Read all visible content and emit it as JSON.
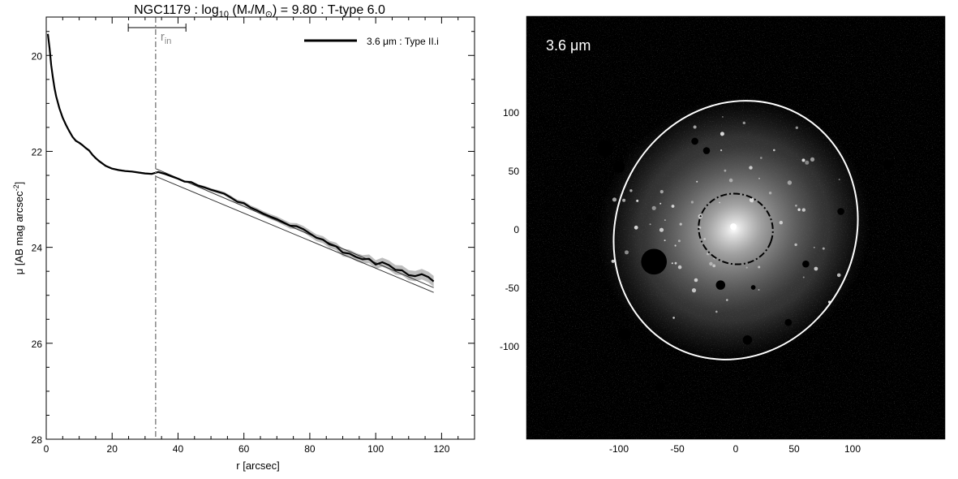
{
  "chart_data": [
    {
      "type": "line",
      "title": "NGC1179 : log",
      "title_sub": "10",
      "title_mid": " (M",
      "title_star": "*",
      "title_slash": "/M",
      "title_sun": "⊙",
      "title_end": ") = 9.80 : T-type 6.0",
      "xlabel": "r [arcsec]",
      "ylabel": "μ [AB mag arcsec",
      "ylabel_sup": "-2",
      "ylabel_end": "]",
      "xlim": [
        0,
        130
      ],
      "ylim": [
        28,
        19.2
      ],
      "y_inverted": true,
      "xticks": [
        "0",
        "20",
        "40",
        "60",
        "80",
        "100",
        "120"
      ],
      "yticks": [
        "20",
        "22",
        "24",
        "26",
        "28"
      ],
      "legend_placement": "top-right",
      "legend": [
        {
          "name": "3.6 μm : Type II.i",
          "color": "#000000"
        }
      ],
      "r_in": {
        "label": "r",
        "label_sub": "in",
        "x": 33.2,
        "err_low": 24.9,
        "err_high": 42.4,
        "color": "#888888"
      },
      "series": [
        {
          "name": "3.6 μm : Type II.i",
          "color": "#000000",
          "x": [
            0.5,
            1,
            1.5,
            2,
            2.5,
            3,
            4,
            5,
            6,
            7,
            8,
            9,
            10,
            11,
            12,
            13,
            14,
            15,
            16,
            17,
            18,
            19,
            20,
            22,
            24,
            26,
            28,
            30,
            32,
            33,
            34,
            36,
            38,
            40,
            42,
            44,
            46,
            48,
            50,
            52,
            54,
            56,
            58,
            60,
            62,
            64,
            66,
            68,
            70,
            72,
            74,
            76,
            78,
            80,
            82,
            84,
            86,
            88,
            90,
            92,
            94,
            96,
            98,
            100,
            102,
            104,
            106,
            108,
            110,
            112,
            114,
            116,
            117.6
          ],
          "y": [
            19.55,
            19.85,
            20.2,
            20.45,
            20.68,
            20.85,
            21.1,
            21.3,
            21.45,
            21.58,
            21.7,
            21.78,
            21.82,
            21.87,
            21.93,
            21.98,
            22.07,
            22.14,
            22.2,
            22.25,
            22.3,
            22.33,
            22.36,
            22.39,
            22.41,
            22.42,
            22.44,
            22.46,
            22.47,
            22.45,
            22.43,
            22.47,
            22.52,
            22.57,
            22.63,
            22.64,
            22.71,
            22.75,
            22.8,
            22.84,
            22.88,
            22.96,
            23.05,
            23.08,
            23.17,
            23.23,
            23.3,
            23.36,
            23.41,
            23.48,
            23.55,
            23.56,
            23.62,
            23.71,
            23.8,
            23.84,
            23.94,
            23.98,
            24.11,
            24.13,
            24.2,
            24.25,
            24.24,
            24.36,
            24.31,
            24.37,
            24.47,
            24.48,
            24.58,
            24.6,
            24.56,
            24.62,
            24.71
          ]
        }
      ],
      "fits": [
        {
          "x": [
            33.2,
            117.6
          ],
          "y": [
            22.52,
            24.94
          ],
          "color": "#333333"
        },
        {
          "x": [
            33.2,
            117.6
          ],
          "y": [
            22.36,
            24.84
          ],
          "color": "#333333"
        }
      ]
    },
    {
      "type": "heatmap",
      "image_label": "3.6 μm",
      "xticks": [
        "-100",
        "-50",
        "0",
        "50",
        "100"
      ],
      "yticks": [
        "100",
        "50",
        "0",
        "-50",
        "-100"
      ],
      "xlim": [
        -180,
        180
      ],
      "ylim": [
        -180,
        180
      ],
      "outer_ellipse": {
        "center": [
          0,
          -1
        ],
        "semi_major": 113,
        "semi_minor": 102,
        "angle_deg": 28,
        "color": "#ffffff",
        "style": "solid"
      },
      "inner_ellipse": {
        "center": [
          0,
          0
        ],
        "semi_major": 32,
        "semi_minor": 30,
        "angle_deg": 20,
        "color": "#000000",
        "style": "dash-dot"
      }
    }
  ]
}
